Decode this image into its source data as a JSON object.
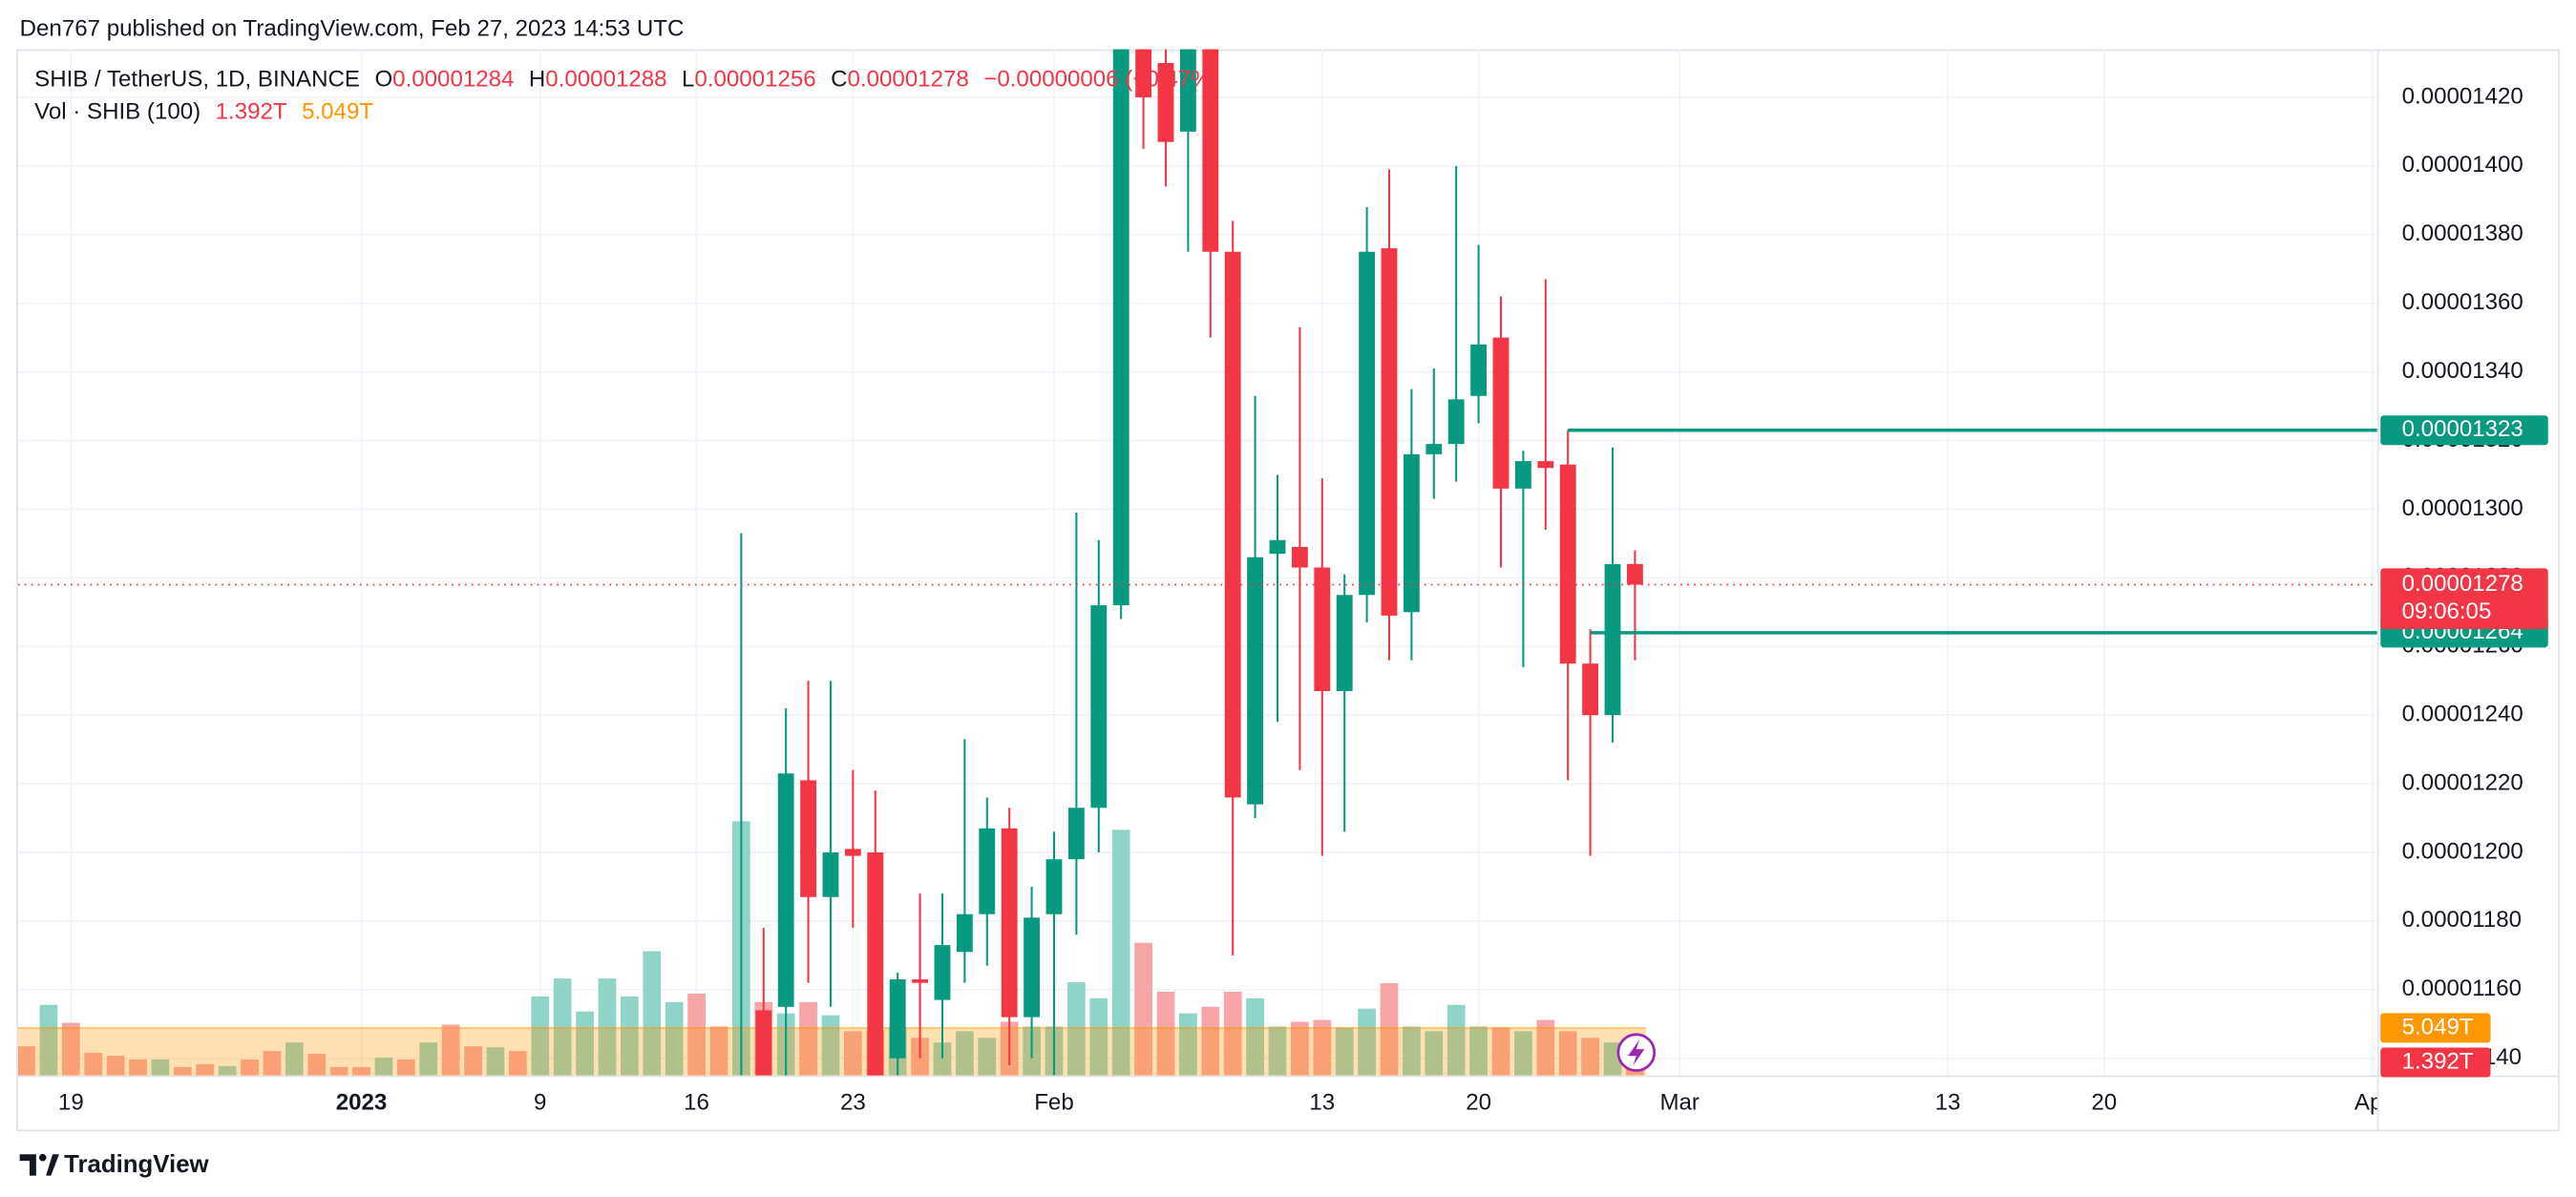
{
  "header": {
    "published": "Den767 published on TradingView.com, Feb 27, 2023 14:53 UTC"
  },
  "footer": {
    "brand": "TradingView"
  },
  "chart_data": {
    "type": "candlestick",
    "symbol": "SHIB / TetherUS, 1D, BINANCE",
    "legend": {
      "o": "O",
      "h": "H",
      "l": "L",
      "c": "C",
      "change": "−0.00000006 (−0.47%)"
    },
    "countdown": "09:06:05",
    "up_color": "#089981",
    "down_color": "#f23645",
    "grid": true,
    "categories": [
      null,
      null,
      "19",
      null,
      null,
      null,
      null,
      null,
      null,
      null,
      null,
      null,
      null,
      null,
      null,
      "2023",
      null,
      null,
      null,
      null,
      null,
      null,
      null,
      "9",
      null,
      null,
      null,
      null,
      null,
      null,
      "16",
      null,
      null,
      null,
      null,
      null,
      null,
      "23",
      null,
      null,
      null,
      null,
      null,
      null,
      null,
      null,
      "Feb",
      null,
      null,
      null,
      null,
      null,
      null,
      null,
      null,
      null,
      null,
      null,
      "13",
      null,
      null,
      null,
      null,
      null,
      null,
      "20",
      null,
      null,
      null,
      null,
      null,
      null,
      null,
      null,
      "Mar",
      null,
      null,
      null,
      null,
      null,
      null,
      null,
      null,
      null,
      null,
      null,
      "13",
      null,
      null,
      null,
      null,
      null,
      null,
      "20",
      null,
      null,
      null,
      null,
      null,
      null,
      null,
      null,
      null,
      null,
      null,
      "Apr"
    ],
    "open": [
      null,
      null,
      null,
      null,
      null,
      null,
      null,
      null,
      null,
      null,
      null,
      null,
      null,
      null,
      null,
      null,
      null,
      null,
      null,
      null,
      null,
      null,
      null,
      null,
      null,
      null,
      null,
      null,
      null,
      null,
      null,
      null,
      1.1e-05,
      1.154e-05,
      1.155e-05,
      1.221e-05,
      1.187e-05,
      1.201e-05,
      1.2e-05,
      1.14e-05,
      1.163e-05,
      1.157e-05,
      1.171e-05,
      1.182e-05,
      1.207e-05,
      1.152e-05,
      1.182e-05,
      1.198e-05,
      1.213e-05,
      1.272e-05,
      1.44e-05,
      1.43e-05,
      1.41e-05,
      1.436e-05,
      1.375e-05,
      1.214e-05,
      1.287e-05,
      1.289e-05,
      1.283e-05,
      1.247e-05,
      1.275e-05,
      1.376e-05,
      1.27e-05,
      1.316e-05,
      1.319e-05,
      1.333e-05,
      1.35e-05,
      1.306e-05,
      1.314e-05,
      1.313e-05,
      1.255e-05,
      1.24e-05,
      1.284e-05,
      null,
      null,
      null,
      null,
      null,
      null,
      null,
      null,
      null,
      null,
      null,
      null,
      null,
      null,
      null,
      null,
      null,
      null,
      null,
      null,
      null,
      null,
      null,
      null,
      null,
      null,
      null,
      null,
      null,
      null,
      null,
      null,
      null
    ],
    "high": [
      null,
      null,
      null,
      null,
      null,
      null,
      null,
      null,
      null,
      null,
      null,
      null,
      null,
      null,
      null,
      null,
      null,
      null,
      null,
      null,
      null,
      null,
      null,
      null,
      null,
      null,
      null,
      null,
      null,
      null,
      null,
      null,
      1.293e-05,
      1.178e-05,
      1.242e-05,
      1.25e-05,
      1.25e-05,
      1.224e-05,
      1.218e-05,
      1.165e-05,
      1.188e-05,
      1.188e-05,
      1.233e-05,
      1.216e-05,
      1.213e-05,
      1.19e-05,
      1.206e-05,
      1.299e-05,
      1.291e-05,
      1.46e-05,
      1.455e-05,
      1.445e-05,
      1.45e-05,
      1.45e-05,
      1.384e-05,
      1.333e-05,
      1.31e-05,
      1.353e-05,
      1.309e-05,
      1.281e-05,
      1.388e-05,
      1.399e-05,
      1.335e-05,
      1.341e-05,
      1.4e-05,
      1.377e-05,
      1.362e-05,
      1.317e-05,
      1.367e-05,
      1.323e-05,
      1.265e-05,
      1.318e-05,
      1.288e-05,
      null,
      null,
      null,
      null,
      null,
      null,
      null,
      null,
      null,
      null,
      null,
      null,
      null,
      null,
      null,
      null,
      null,
      null,
      null,
      null,
      null,
      null,
      null,
      null,
      null,
      null,
      null,
      null,
      null,
      null,
      null,
      null,
      null
    ],
    "low": [
      null,
      null,
      null,
      null,
      null,
      null,
      null,
      null,
      null,
      null,
      null,
      null,
      null,
      null,
      null,
      null,
      null,
      null,
      null,
      null,
      null,
      null,
      null,
      null,
      null,
      null,
      null,
      null,
      null,
      null,
      null,
      null,
      1.095e-05,
      1.11e-05,
      1.11e-05,
      1.162e-05,
      1.155e-05,
      1.178e-05,
      1.12e-05,
      1.125e-05,
      1.14e-05,
      1.14e-05,
      1.162e-05,
      1.167e-05,
      1.138e-05,
      1.14e-05,
      1.135e-05,
      1.176e-05,
      1.2e-05,
      1.268e-05,
      1.405e-05,
      1.394e-05,
      1.375e-05,
      1.35e-05,
      1.17e-05,
      1.21e-05,
      1.238e-05,
      1.224e-05,
      1.199e-05,
      1.206e-05,
      1.267e-05,
      1.256e-05,
      1.256e-05,
      1.303e-05,
      1.308e-05,
      1.325e-05,
      1.283e-05,
      1.254e-05,
      1.294e-05,
      1.221e-05,
      1.199e-05,
      1.232e-05,
      1.256e-05,
      null,
      null,
      null,
      null,
      null,
      null,
      null,
      null,
      null,
      null,
      null,
      null,
      null,
      null,
      null,
      null,
      null,
      null,
      null,
      null,
      null,
      null,
      null,
      null,
      null,
      null,
      null,
      null,
      null,
      null,
      null,
      null,
      null
    ],
    "close": [
      null,
      null,
      null,
      null,
      null,
      null,
      null,
      null,
      null,
      null,
      null,
      null,
      null,
      null,
      null,
      null,
      null,
      null,
      null,
      null,
      null,
      null,
      null,
      null,
      null,
      null,
      null,
      null,
      null,
      null,
      null,
      null,
      1.13e-05,
      1.125e-05,
      1.223e-05,
      1.187e-05,
      1.2e-05,
      1.199e-05,
      1.13e-05,
      1.163e-05,
      1.162e-05,
      1.173e-05,
      1.182e-05,
      1.207e-05,
      1.152e-05,
      1.181e-05,
      1.198e-05,
      1.213e-05,
      1.272e-05,
      1.44e-05,
      1.42e-05,
      1.407e-05,
      1.44e-05,
      1.375e-05,
      1.216e-05,
      1.286e-05,
      1.291e-05,
      1.283e-05,
      1.247e-05,
      1.275e-05,
      1.375e-05,
      1.269e-05,
      1.316e-05,
      1.319e-05,
      1.332e-05,
      1.348e-05,
      1.306e-05,
      1.314e-05,
      1.312e-05,
      1.255e-05,
      1.24e-05,
      1.284e-05,
      1.278e-05,
      null,
      null,
      null,
      null,
      null,
      null,
      null,
      null,
      null,
      null,
      null,
      null,
      null,
      null,
      null,
      null,
      null,
      null,
      null,
      null,
      null,
      null,
      null,
      null,
      null,
      null,
      null,
      null,
      null,
      null,
      null,
      null,
      null
    ],
    "ylim": [
      1.135e-05,
      1.434e-05
    ],
    "yticks": [
      {
        "value": 1.42e-05,
        "label": "0.00001420"
      },
      {
        "value": 1.4e-05,
        "label": "0.00001400"
      },
      {
        "value": 1.38e-05,
        "label": "0.00001380"
      },
      {
        "value": 1.36e-05,
        "label": "0.00001360"
      },
      {
        "value": 1.34e-05,
        "label": "0.00001340"
      },
      {
        "value": 1.32e-05,
        "label": "0.00001320"
      },
      {
        "value": 1.3e-05,
        "label": "0.00001300"
      },
      {
        "value": 1.28e-05,
        "label": "0.00001280"
      },
      {
        "value": 1.26e-05,
        "label": "0.00001260"
      },
      {
        "value": 1.24e-05,
        "label": "0.00001240"
      },
      {
        "value": 1.22e-05,
        "label": "0.00001220"
      },
      {
        "value": 1.2e-05,
        "label": "0.00001200"
      },
      {
        "value": 1.18e-05,
        "label": "0.00001180"
      },
      {
        "value": 1.16e-05,
        "label": "0.00001160"
      },
      {
        "value": 1.14e-05,
        "label": "0.00001140"
      }
    ],
    "levels": [
      {
        "value": 1.323e-05,
        "color": "#089981"
      },
      {
        "value": 1.264e-05,
        "color": "#089981"
      }
    ],
    "volume": {
      "name": "Vol · SHIB (100)",
      "ylim": [
        0,
        109
      ],
      "values": [
        3.1,
        7.5,
        5.6,
        2.4,
        2.1,
        1.7,
        1.7,
        0.9,
        1.2,
        1.0,
        1.7,
        2.6,
        3.5,
        2.3,
        0.9,
        0.9,
        1.9,
        1.7,
        3.5,
        5.4,
        3.1,
        3.0,
        2.6,
        8.4,
        10.3,
        6.8,
        10.3,
        8.4,
        13.2,
        7.8,
        8.7,
        5.2,
        27.0,
        7.8,
        6.6,
        7.8,
        6.4,
        4.7,
        4.7,
        5.2,
        4.0,
        3.5,
        4.7,
        4.0,
        5.7,
        5.2,
        5.2,
        9.9,
        8.2,
        26.1,
        14.1,
        8.9,
        6.6,
        7.3,
        8.9,
        8.2,
        5.2,
        5.7,
        5.9,
        5.1,
        7.1,
        9.8,
        5.2,
        4.7,
        7.5,
        5.2,
        5.1,
        4.7,
        5.9,
        4.7,
        4.0,
        3.5,
        1.392,
        null,
        null,
        null,
        null,
        null,
        null,
        null,
        null,
        null,
        null,
        null,
        null,
        null,
        null,
        null,
        null,
        null,
        null,
        null,
        null,
        null,
        null,
        null,
        null,
        null,
        null,
        null,
        null,
        null,
        null,
        null,
        null,
        null
      ],
      "value_labels": [
        null,
        null,
        null,
        null,
        null,
        null,
        null,
        null,
        null,
        null,
        null,
        null,
        null,
        null,
        null,
        null,
        null,
        null,
        null,
        null,
        null,
        null,
        null,
        null,
        null,
        null,
        null,
        null,
        null,
        null,
        null,
        null,
        null,
        null,
        null,
        null,
        null,
        null,
        null,
        null,
        null,
        null,
        null,
        null,
        null,
        null,
        null,
        null,
        null,
        null,
        null,
        null,
        null,
        null,
        null,
        null,
        null,
        null,
        null,
        null,
        null,
        null,
        null,
        null,
        null,
        null,
        null,
        null,
        null,
        null,
        null,
        null,
        "1.392T",
        null,
        null,
        null,
        null,
        null,
        null,
        null,
        null,
        null,
        null,
        null,
        null,
        null,
        null,
        null,
        null,
        null,
        null,
        null,
        null,
        null,
        null,
        null,
        null,
        null,
        null,
        null,
        null,
        null,
        null,
        null,
        null,
        null
      ],
      "colors": [
        "#f7a5a6",
        "#8fd3c9",
        "#f7a5a6",
        "#f7a5a6",
        "#f7a5a6",
        "#f7a5a6",
        "#8fd3c9",
        "#f7a5a6",
        "#f7a5a6",
        "#8fd3c9",
        "#f7a5a6",
        "#f7a5a6",
        "#8fd3c9",
        "#f7a5a6",
        "#f7a5a6",
        "#f7a5a6",
        "#8fd3c9",
        "#f7a5a6",
        "#8fd3c9",
        "#f7a5a6",
        "#f7a5a6",
        "#8fd3c9",
        "#f7a5a6",
        "#8fd3c9",
        "#8fd3c9",
        "#8fd3c9",
        "#8fd3c9",
        "#8fd3c9",
        "#8fd3c9",
        "#8fd3c9",
        "#f7a5a6",
        "#f7a5a6",
        "#8fd3c9",
        "#f7a5a6",
        "#8fd3c9",
        "#f7a5a6",
        "#8fd3c9",
        "#f7a5a6",
        "#f7a5a6",
        "#8fd3c9",
        "#f7a5a6",
        "#8fd3c9",
        "#8fd3c9",
        "#8fd3c9",
        "#f7a5a6",
        "#8fd3c9",
        "#8fd3c9",
        "#8fd3c9",
        "#8fd3c9",
        "#8fd3c9",
        "#f7a5a6",
        "#f7a5a6",
        "#8fd3c9",
        "#f7a5a6",
        "#f7a5a6",
        "#8fd3c9",
        "#8fd3c9",
        "#f7a5a6",
        "#f7a5a6",
        "#8fd3c9",
        "#8fd3c9",
        "#f7a5a6",
        "#8fd3c9",
        "#8fd3c9",
        "#8fd3c9",
        "#8fd3c9",
        "#f7a5a6",
        "#8fd3c9",
        "#f7a5a6",
        "#f7a5a6",
        "#f7a5a6",
        "#8fd3c9",
        "#f7a5a6",
        null,
        null,
        null,
        null,
        null,
        null,
        null,
        null,
        null,
        null,
        null,
        null,
        null,
        null,
        null,
        null,
        null,
        null,
        null,
        null,
        null,
        null,
        null,
        null,
        null,
        null,
        null,
        null,
        null,
        null,
        null,
        null,
        null
      ],
      "ma": {
        "value": 5.049,
        "label": "5.049T",
        "color": "#ff9800"
      }
    }
  }
}
